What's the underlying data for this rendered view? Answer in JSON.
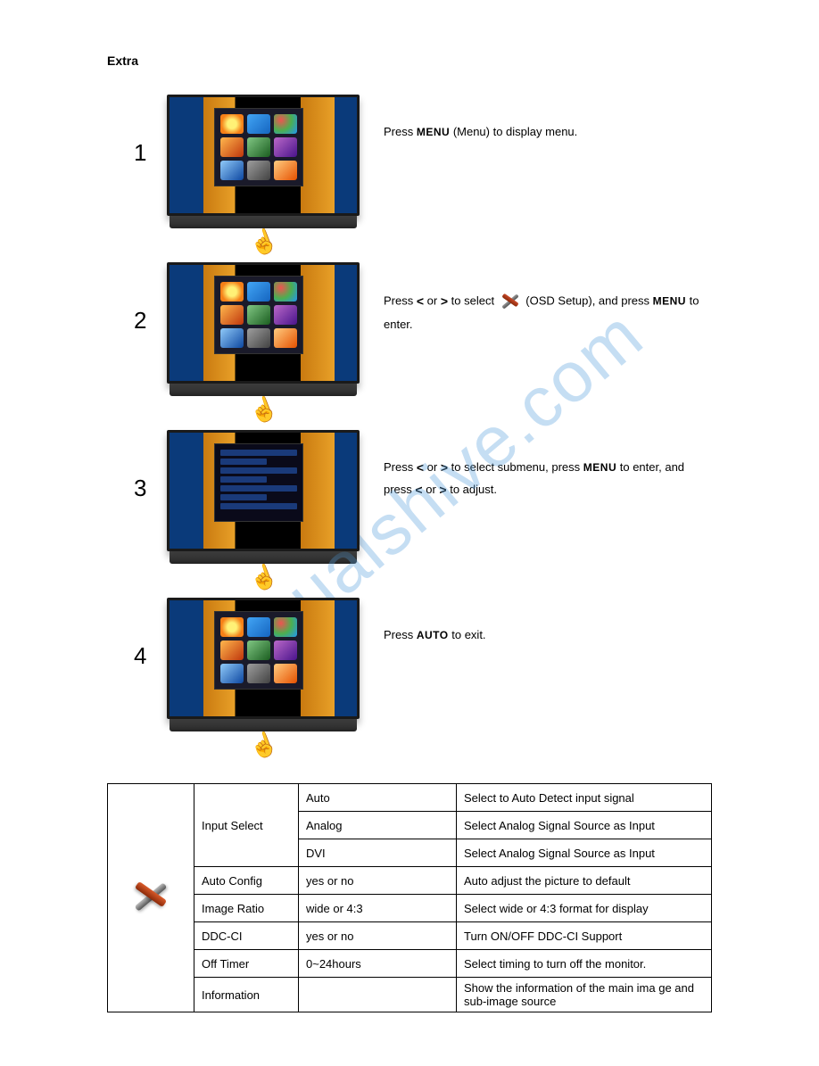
{
  "watermark": "manualshive.com",
  "section_title": "Extra",
  "steps": [
    {
      "num": "1",
      "parts": [
        "Press ",
        "MENU",
        " (Menu) to display menu."
      ]
    },
    {
      "num": "2",
      "parts": [
        "Press ",
        "<",
        " or ",
        ">",
        " to select ",
        "TOOL",
        " (OSD Setup), and press ",
        "MENU",
        " to enter."
      ]
    },
    {
      "num": "3",
      "parts": [
        "Press ",
        "<",
        " or ",
        ">",
        " to select submenu, press ",
        "MENU",
        " to enter, and press ",
        "<",
        " or ",
        ">",
        " to adjust."
      ]
    },
    {
      "num": "4",
      "parts": [
        "Press ",
        "AUTO",
        " to exit."
      ]
    }
  ],
  "table": {
    "rows": [
      {
        "c1": "Input Select",
        "c2": "Auto",
        "c3": "Select to Auto Detect input signal",
        "rowspan1": 3
      },
      {
        "c2": "Analog",
        "c3": "Select Analog Signal Source as Input"
      },
      {
        "c2": "DVI",
        "c3": "Select Analog Signal Source as Input"
      },
      {
        "c1": "Auto Config",
        "c2": "yes or no",
        "c3": "Auto adjust the picture to default"
      },
      {
        "c1": "Image Ratio",
        "c2": "wide or 4:3",
        "c3": "Select wide or 4:3 format for display"
      },
      {
        "c1": "DDC-CI",
        "c2": "yes or no",
        "c3": "Turn ON/OFF DDC-CI Support"
      },
      {
        "c1": "Off Timer",
        "c2": "0~24hours",
        "c3": "Select timing to turn off the monitor."
      },
      {
        "c1": "Information",
        "c2": "",
        "c3": "Show the information of the main ima ge and sub-image source"
      }
    ]
  }
}
